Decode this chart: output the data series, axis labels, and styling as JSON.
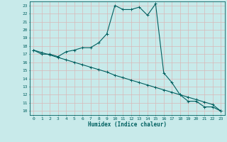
{
  "xlabel": "Humidex (Indice chaleur)",
  "bg_color": "#c8eaea",
  "line_color": "#006060",
  "grid_color": "#d8b8b8",
  "xlim": [
    -0.5,
    23.5
  ],
  "ylim": [
    9.5,
    23.5
  ],
  "xticks": [
    0,
    1,
    2,
    3,
    4,
    5,
    6,
    7,
    8,
    9,
    10,
    11,
    12,
    13,
    14,
    15,
    16,
    17,
    18,
    19,
    20,
    21,
    22,
    23
  ],
  "yticks": [
    10,
    11,
    12,
    13,
    14,
    15,
    16,
    17,
    18,
    19,
    20,
    21,
    22,
    23
  ],
  "curve1_x": [
    0,
    1,
    2,
    3,
    4,
    5,
    6,
    7,
    8,
    9,
    10,
    11,
    12,
    13,
    14,
    15,
    16,
    17,
    18,
    19,
    20,
    21,
    22,
    23
  ],
  "curve1_y": [
    17.5,
    17.0,
    17.0,
    16.7,
    17.3,
    17.5,
    17.8,
    17.8,
    18.4,
    19.5,
    23.0,
    22.5,
    22.5,
    22.8,
    21.8,
    23.2,
    14.7,
    13.5,
    12.0,
    11.2,
    11.2,
    10.5,
    10.5,
    10.0
  ],
  "curve2_x": [
    0,
    1,
    2,
    3,
    4,
    5,
    6,
    7,
    8,
    9,
    10,
    11,
    12,
    13,
    14,
    15,
    16,
    17,
    18,
    19,
    20,
    21,
    22,
    23
  ],
  "curve2_y": [
    17.5,
    17.2,
    16.9,
    16.6,
    16.3,
    16.0,
    15.7,
    15.4,
    15.1,
    14.8,
    14.4,
    14.1,
    13.8,
    13.5,
    13.2,
    12.9,
    12.6,
    12.3,
    12.0,
    11.7,
    11.4,
    11.1,
    10.8,
    10.0
  ]
}
